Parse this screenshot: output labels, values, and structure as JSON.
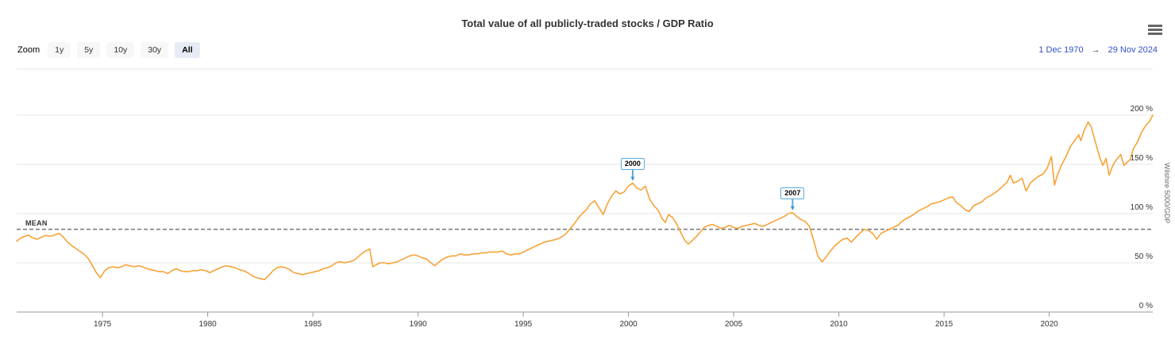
{
  "header": {
    "title": "Total value of all publicly-traded stocks / GDP Ratio"
  },
  "menu": {
    "icon": "hamburger-icon"
  },
  "toolbar": {
    "zoom_label": "Zoom",
    "buttons": [
      {
        "label": "1y",
        "selected": false
      },
      {
        "label": "5y",
        "selected": false
      },
      {
        "label": "10y",
        "selected": false
      },
      {
        "label": "30y",
        "selected": false
      },
      {
        "label": "All",
        "selected": true
      }
    ],
    "range": {
      "from": "1 Dec 1970",
      "arrow": "→",
      "to": "29 Nov 2024"
    }
  },
  "colors": {
    "series": "#f7a236",
    "annotation_border": "#5aabdd",
    "annotation_tip": "#3b97d3",
    "range_text": "#3350cc",
    "selected_button_bg": "#e6ebf5",
    "grid": "#e6e6e6",
    "axis_line": "#999999",
    "mean_line": "#333333"
  },
  "chart_data": {
    "type": "line",
    "title": "Total value of all publicly-traded stocks / GDP Ratio",
    "yaxis_title": "Wilshire 5000/GDP",
    "legend": "none",
    "grid": true,
    "xlim": [
      1970.92,
      2024.92
    ],
    "ylim": [
      0,
      246.8
    ],
    "x_ticks": [
      1975,
      1980,
      1985,
      1990,
      1995,
      2000,
      2005,
      2010,
      2015,
      2020
    ],
    "y_ticks": [
      {
        "value": 0,
        "label": "0 %"
      },
      {
        "value": 50,
        "label": "50 %"
      },
      {
        "value": 100,
        "label": "100 %"
      },
      {
        "value": 150,
        "label": "150 %"
      },
      {
        "value": 200,
        "label": "200 %"
      }
    ],
    "mean": {
      "label": "MEAN",
      "value": 84
    },
    "annotations": [
      {
        "label": "2000",
        "x": 2000.2,
        "value": 131
      },
      {
        "label": "2007",
        "x": 2007.8,
        "value": 101
      }
    ],
    "series": [
      {
        "name": "Wilshire 5000/GDP",
        "points": [
          [
            1970.92,
            72
          ],
          [
            1971.1,
            75
          ],
          [
            1971.3,
            77
          ],
          [
            1971.5,
            78
          ],
          [
            1971.7,
            75
          ],
          [
            1971.9,
            74
          ],
          [
            1972.1,
            76
          ],
          [
            1972.3,
            78
          ],
          [
            1972.5,
            77
          ],
          [
            1972.7,
            78
          ],
          [
            1972.92,
            80
          ],
          [
            1973.1,
            77
          ],
          [
            1973.3,
            72
          ],
          [
            1973.5,
            68
          ],
          [
            1973.7,
            65
          ],
          [
            1973.9,
            62
          ],
          [
            1974.1,
            59
          ],
          [
            1974.3,
            55
          ],
          [
            1974.5,
            48
          ],
          [
            1974.7,
            40
          ],
          [
            1974.9,
            35
          ],
          [
            1975.1,
            42
          ],
          [
            1975.3,
            45
          ],
          [
            1975.5,
            46
          ],
          [
            1975.7,
            45
          ],
          [
            1975.9,
            46
          ],
          [
            1976.1,
            48
          ],
          [
            1976.3,
            47
          ],
          [
            1976.5,
            46
          ],
          [
            1976.7,
            47
          ],
          [
            1976.9,
            46
          ],
          [
            1977.1,
            44
          ],
          [
            1977.3,
            43
          ],
          [
            1977.5,
            42
          ],
          [
            1977.7,
            41
          ],
          [
            1977.9,
            41
          ],
          [
            1978.1,
            39
          ],
          [
            1978.3,
            42
          ],
          [
            1978.5,
            44
          ],
          [
            1978.7,
            42
          ],
          [
            1978.9,
            41
          ],
          [
            1979.1,
            41
          ],
          [
            1979.3,
            42
          ],
          [
            1979.5,
            42
          ],
          [
            1979.7,
            43
          ],
          [
            1979.9,
            42
          ],
          [
            1980.1,
            40
          ],
          [
            1980.3,
            42
          ],
          [
            1980.5,
            44
          ],
          [
            1980.7,
            46
          ],
          [
            1980.9,
            47
          ],
          [
            1981.1,
            46
          ],
          [
            1981.3,
            45
          ],
          [
            1981.5,
            43
          ],
          [
            1981.7,
            42
          ],
          [
            1981.9,
            40
          ],
          [
            1982.1,
            37
          ],
          [
            1982.3,
            35
          ],
          [
            1982.5,
            34
          ],
          [
            1982.7,
            33
          ],
          [
            1982.9,
            37
          ],
          [
            1983.1,
            42
          ],
          [
            1983.3,
            45
          ],
          [
            1983.5,
            46
          ],
          [
            1983.7,
            45
          ],
          [
            1983.9,
            43
          ],
          [
            1984.1,
            40
          ],
          [
            1984.3,
            39
          ],
          [
            1984.5,
            38
          ],
          [
            1984.7,
            39
          ],
          [
            1984.9,
            40
          ],
          [
            1985.1,
            41
          ],
          [
            1985.3,
            42
          ],
          [
            1985.5,
            44
          ],
          [
            1985.7,
            45
          ],
          [
            1985.9,
            47
          ],
          [
            1986.1,
            50
          ],
          [
            1986.3,
            51
          ],
          [
            1986.5,
            50
          ],
          [
            1986.7,
            51
          ],
          [
            1986.9,
            52
          ],
          [
            1987.1,
            55
          ],
          [
            1987.3,
            59
          ],
          [
            1987.5,
            62
          ],
          [
            1987.7,
            64
          ],
          [
            1987.85,
            46
          ],
          [
            1988.0,
            48
          ],
          [
            1988.2,
            50
          ],
          [
            1988.4,
            50
          ],
          [
            1988.6,
            49
          ],
          [
            1988.8,
            50
          ],
          [
            1989.0,
            51
          ],
          [
            1989.2,
            53
          ],
          [
            1989.4,
            55
          ],
          [
            1989.6,
            57
          ],
          [
            1989.8,
            58
          ],
          [
            1990.0,
            57
          ],
          [
            1990.2,
            55
          ],
          [
            1990.4,
            54
          ],
          [
            1990.6,
            50
          ],
          [
            1990.8,
            47
          ],
          [
            1991.0,
            51
          ],
          [
            1991.2,
            54
          ],
          [
            1991.4,
            56
          ],
          [
            1991.6,
            57
          ],
          [
            1991.8,
            57
          ],
          [
            1992.0,
            59
          ],
          [
            1992.2,
            58
          ],
          [
            1992.4,
            58
          ],
          [
            1992.6,
            59
          ],
          [
            1992.8,
            59
          ],
          [
            1993.0,
            60
          ],
          [
            1993.2,
            60
          ],
          [
            1993.4,
            61
          ],
          [
            1993.6,
            61
          ],
          [
            1993.8,
            61
          ],
          [
            1994.0,
            62
          ],
          [
            1994.2,
            59
          ],
          [
            1994.4,
            58
          ],
          [
            1994.6,
            59
          ],
          [
            1994.8,
            59
          ],
          [
            1995.0,
            61
          ],
          [
            1995.2,
            63
          ],
          [
            1995.4,
            65
          ],
          [
            1995.6,
            67
          ],
          [
            1995.8,
            69
          ],
          [
            1996.0,
            71
          ],
          [
            1996.2,
            72
          ],
          [
            1996.4,
            73
          ],
          [
            1996.6,
            74
          ],
          [
            1996.8,
            76
          ],
          [
            1997.0,
            79
          ],
          [
            1997.2,
            84
          ],
          [
            1997.4,
            89
          ],
          [
            1997.6,
            95
          ],
          [
            1997.8,
            100
          ],
          [
            1998.0,
            104
          ],
          [
            1998.2,
            110
          ],
          [
            1998.4,
            113
          ],
          [
            1998.6,
            106
          ],
          [
            1998.8,
            99
          ],
          [
            1999.0,
            110
          ],
          [
            1999.2,
            118
          ],
          [
            1999.4,
            123
          ],
          [
            1999.6,
            120
          ],
          [
            1999.8,
            122
          ],
          [
            2000.0,
            128
          ],
          [
            2000.2,
            131
          ],
          [
            2000.4,
            126
          ],
          [
            2000.6,
            124
          ],
          [
            2000.8,
            128
          ],
          [
            2001.0,
            115
          ],
          [
            2001.2,
            108
          ],
          [
            2001.4,
            104
          ],
          [
            2001.6,
            95
          ],
          [
            2001.75,
            91
          ],
          [
            2001.9,
            99
          ],
          [
            2002.1,
            96
          ],
          [
            2002.3,
            89
          ],
          [
            2002.5,
            80
          ],
          [
            2002.7,
            72
          ],
          [
            2002.85,
            69
          ],
          [
            2003.0,
            72
          ],
          [
            2003.2,
            76
          ],
          [
            2003.4,
            81
          ],
          [
            2003.6,
            86
          ],
          [
            2003.8,
            88
          ],
          [
            2004.0,
            89
          ],
          [
            2004.2,
            87
          ],
          [
            2004.4,
            85
          ],
          [
            2004.6,
            86
          ],
          [
            2004.8,
            88
          ],
          [
            2005.0,
            86
          ],
          [
            2005.2,
            85
          ],
          [
            2005.4,
            87
          ],
          [
            2005.6,
            88
          ],
          [
            2005.8,
            89
          ],
          [
            2006.0,
            90
          ],
          [
            2006.2,
            88
          ],
          [
            2006.4,
            87
          ],
          [
            2006.6,
            89
          ],
          [
            2006.8,
            91
          ],
          [
            2007.0,
            93
          ],
          [
            2007.2,
            95
          ],
          [
            2007.4,
            97
          ],
          [
            2007.6,
            100
          ],
          [
            2007.8,
            101
          ],
          [
            2008.0,
            97
          ],
          [
            2008.2,
            94
          ],
          [
            2008.4,
            92
          ],
          [
            2008.6,
            87
          ],
          [
            2008.8,
            73
          ],
          [
            2009.0,
            57
          ],
          [
            2009.2,
            51
          ],
          [
            2009.4,
            56
          ],
          [
            2009.6,
            62
          ],
          [
            2009.8,
            67
          ],
          [
            2010.0,
            71
          ],
          [
            2010.2,
            74
          ],
          [
            2010.4,
            75
          ],
          [
            2010.6,
            71
          ],
          [
            2010.8,
            76
          ],
          [
            2011.0,
            80
          ],
          [
            2011.2,
            84
          ],
          [
            2011.4,
            83
          ],
          [
            2011.6,
            80
          ],
          [
            2011.8,
            74
          ],
          [
            2012.0,
            80
          ],
          [
            2012.2,
            82
          ],
          [
            2012.4,
            84
          ],
          [
            2012.6,
            86
          ],
          [
            2012.8,
            88
          ],
          [
            2013.0,
            92
          ],
          [
            2013.2,
            95
          ],
          [
            2013.4,
            97
          ],
          [
            2013.6,
            100
          ],
          [
            2013.8,
            103
          ],
          [
            2014.0,
            105
          ],
          [
            2014.2,
            107
          ],
          [
            2014.4,
            110
          ],
          [
            2014.6,
            111
          ],
          [
            2014.8,
            112
          ],
          [
            2015.0,
            114
          ],
          [
            2015.2,
            116
          ],
          [
            2015.4,
            117
          ],
          [
            2015.6,
            111
          ],
          [
            2015.8,
            108
          ],
          [
            2016.0,
            104
          ],
          [
            2016.2,
            102
          ],
          [
            2016.4,
            108
          ],
          [
            2016.6,
            110
          ],
          [
            2016.8,
            112
          ],
          [
            2017.0,
            116
          ],
          [
            2017.2,
            118
          ],
          [
            2017.4,
            121
          ],
          [
            2017.6,
            124
          ],
          [
            2017.8,
            128
          ],
          [
            2018.0,
            132
          ],
          [
            2018.15,
            139
          ],
          [
            2018.3,
            131
          ],
          [
            2018.5,
            133
          ],
          [
            2018.7,
            136
          ],
          [
            2018.9,
            123
          ],
          [
            2019.1,
            131
          ],
          [
            2019.3,
            135
          ],
          [
            2019.5,
            138
          ],
          [
            2019.7,
            140
          ],
          [
            2019.9,
            146
          ],
          [
            2020.1,
            158
          ],
          [
            2020.25,
            129
          ],
          [
            2020.4,
            140
          ],
          [
            2020.6,
            150
          ],
          [
            2020.8,
            158
          ],
          [
            2021.0,
            168
          ],
          [
            2021.2,
            174
          ],
          [
            2021.4,
            180
          ],
          [
            2021.5,
            174
          ],
          [
            2021.65,
            184
          ],
          [
            2021.85,
            193
          ],
          [
            2022.0,
            188
          ],
          [
            2022.2,
            172
          ],
          [
            2022.4,
            157
          ],
          [
            2022.55,
            149
          ],
          [
            2022.7,
            156
          ],
          [
            2022.85,
            139
          ],
          [
            2023.0,
            148
          ],
          [
            2023.2,
            155
          ],
          [
            2023.4,
            160
          ],
          [
            2023.55,
            149
          ],
          [
            2023.7,
            152
          ],
          [
            2023.85,
            155
          ],
          [
            2024.0,
            166
          ],
          [
            2024.2,
            173
          ],
          [
            2024.4,
            183
          ],
          [
            2024.6,
            190
          ],
          [
            2024.75,
            193
          ],
          [
            2024.92,
            200
          ]
        ]
      }
    ]
  }
}
